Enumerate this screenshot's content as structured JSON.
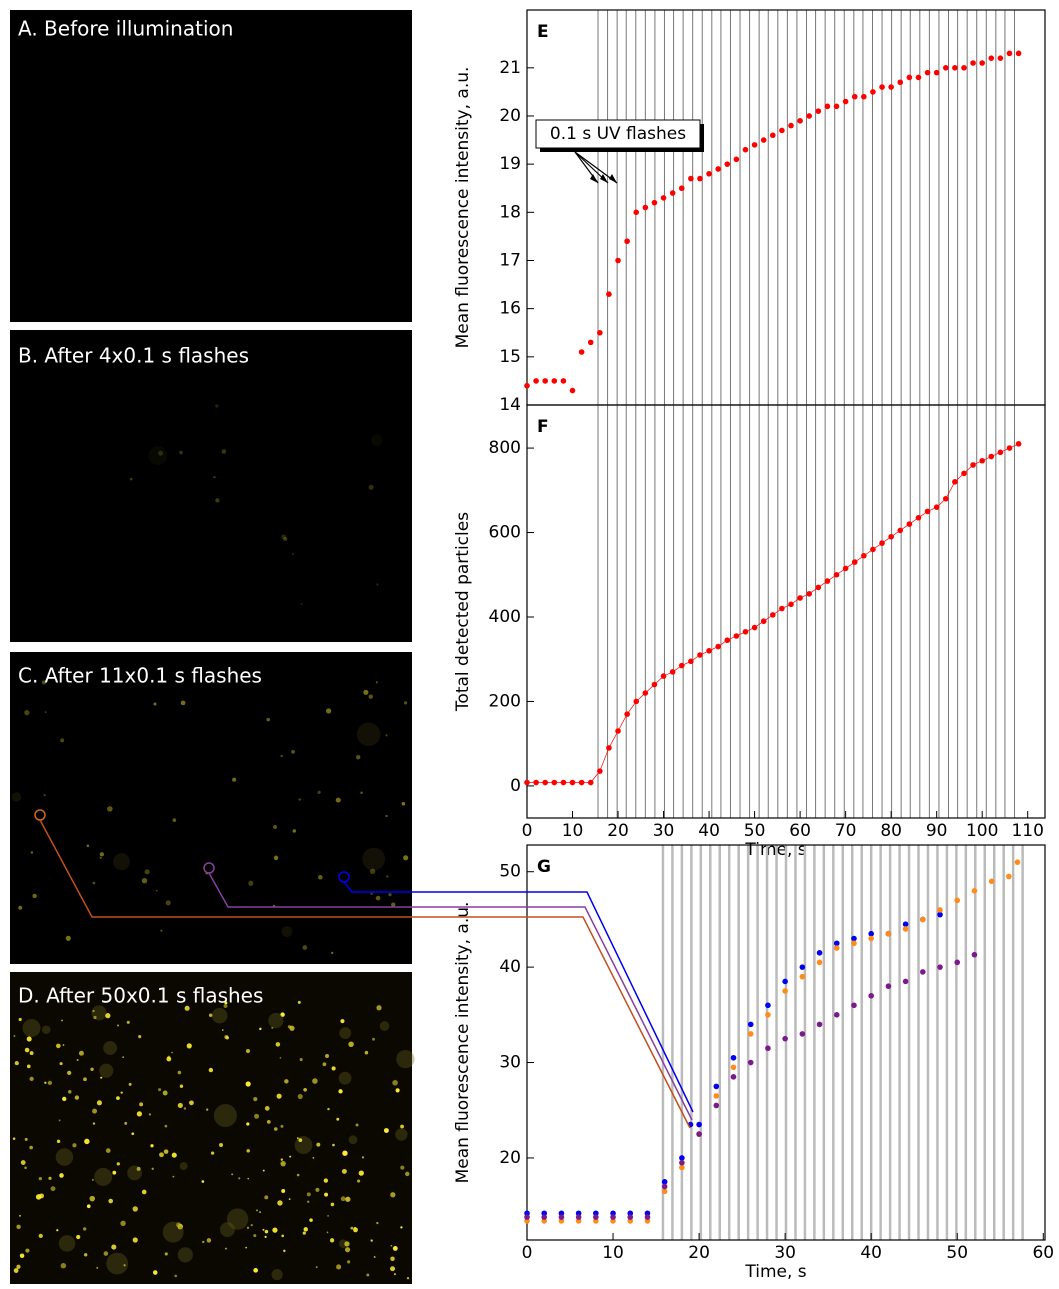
{
  "panels": [
    {
      "title": "A. Before illumination"
    },
    {
      "title": "B. After 4x0.1 s flashes"
    },
    {
      "title": "C. After 11x0.1 s flashes"
    },
    {
      "title": "D. After 50x0.1 s flashes"
    }
  ],
  "chart_data": [
    {
      "type": "scatter",
      "label": "E",
      "ylabel": "Mean fluorescence intensity, a.u.",
      "annotation": "0.1 s UV flashes",
      "xlim": [
        0,
        113.8
      ],
      "ylim": [
        14,
        22.2
      ],
      "yticks": [
        14,
        15,
        16,
        17,
        18,
        19,
        20,
        21
      ],
      "flash_color": "#777777",
      "flashes": [
        15.6,
        17.7,
        19.8,
        21.8,
        23.9,
        26.0,
        28.1,
        30.2,
        32.2,
        34.3,
        36.4,
        38.5,
        40.6,
        42.6,
        44.7,
        46.8,
        48.9,
        51.0,
        53.0,
        55.1,
        57.2,
        59.3,
        61.4,
        63.4,
        65.5,
        67.6,
        69.7,
        71.8,
        73.8,
        75.9,
        78.0,
        80.1,
        82.2,
        84.2,
        86.3,
        88.4,
        90.5,
        92.6,
        94.6,
        96.7,
        98.8,
        100.9,
        103.0,
        105.0,
        107.1
      ],
      "series": [
        {
          "color": "#ff0000",
          "x": [
            0,
            2,
            4,
            6,
            8,
            10,
            12,
            14,
            16,
            18,
            20,
            22,
            24,
            26,
            28,
            30,
            32,
            34,
            36,
            38,
            40,
            42,
            44,
            46,
            48,
            50,
            52,
            54,
            56,
            58,
            60,
            62,
            64,
            66,
            68,
            70,
            72,
            74,
            76,
            78,
            80,
            82,
            84,
            86,
            88,
            90,
            92,
            94,
            96,
            98,
            100,
            102,
            104,
            106,
            108
          ],
          "values": [
            14.4,
            14.5,
            14.5,
            14.5,
            14.5,
            14.3,
            15.1,
            15.3,
            15.5,
            16.3,
            17.0,
            17.4,
            18.0,
            18.1,
            18.2,
            18.3,
            18.4,
            18.5,
            18.7,
            18.7,
            18.8,
            18.9,
            19.0,
            19.1,
            19.3,
            19.4,
            19.5,
            19.6,
            19.7,
            19.8,
            19.9,
            20.0,
            20.1,
            20.2,
            20.2,
            20.3,
            20.4,
            20.4,
            20.5,
            20.6,
            20.6,
            20.7,
            20.8,
            20.8,
            20.9,
            20.9,
            21.0,
            21.0,
            21.0,
            21.1,
            21.1,
            21.2,
            21.2,
            21.3,
            21.3
          ]
        }
      ]
    },
    {
      "type": "scatter",
      "label": "F",
      "ylabel": "Total detected particles",
      "xlabel": "Time, s",
      "connect": true,
      "xlim": [
        0,
        113.8
      ],
      "ylim": [
        -76,
        902
      ],
      "yticks": [
        0,
        200,
        400,
        600,
        800
      ],
      "xticks": [
        0,
        10,
        20,
        30,
        40,
        50,
        60,
        70,
        80,
        90,
        100,
        110
      ],
      "flash_color": "#777777",
      "flashes": [
        15.6,
        17.7,
        19.8,
        21.8,
        23.9,
        26.0,
        28.1,
        30.2,
        32.2,
        34.3,
        36.4,
        38.5,
        40.6,
        42.6,
        44.7,
        46.8,
        48.9,
        51.0,
        53.0,
        55.1,
        57.2,
        59.3,
        61.4,
        63.4,
        65.5,
        67.6,
        69.7,
        71.8,
        73.8,
        75.9,
        78.0,
        80.1,
        82.2,
        84.2,
        86.3,
        88.4,
        90.5,
        92.6,
        94.6,
        96.7,
        98.8,
        100.9,
        103.0,
        105.0,
        107.1
      ],
      "series": [
        {
          "color": "#ff0000",
          "x": [
            0,
            2,
            4,
            6,
            8,
            10,
            12,
            14,
            16,
            18,
            20,
            22,
            24,
            26,
            28,
            30,
            32,
            34,
            36,
            38,
            40,
            42,
            44,
            46,
            48,
            50,
            52,
            54,
            56,
            58,
            60,
            62,
            64,
            66,
            68,
            70,
            72,
            74,
            76,
            78,
            80,
            82,
            84,
            86,
            88,
            90,
            92,
            94,
            96,
            98,
            100,
            102,
            104,
            106,
            108
          ],
          "values": [
            8,
            8,
            8,
            8,
            8,
            8,
            8,
            8,
            35,
            90,
            130,
            170,
            200,
            220,
            240,
            260,
            270,
            285,
            295,
            310,
            320,
            330,
            345,
            355,
            365,
            375,
            390,
            405,
            420,
            430,
            445,
            455,
            470,
            485,
            500,
            515,
            530,
            545,
            560,
            575,
            590,
            605,
            620,
            635,
            650,
            660,
            680,
            720,
            740,
            760,
            770,
            780,
            790,
            800,
            810
          ]
        }
      ]
    },
    {
      "type": "scatter",
      "label": "G",
      "ylabel": "Mean fluorescence intensity, a.u.",
      "xlabel": "Time, s",
      "xlim": [
        0,
        60.2
      ],
      "ylim": [
        11.4,
        52.8
      ],
      "yticks": [
        20,
        30,
        40,
        50
      ],
      "xticks": [
        0,
        10,
        20,
        30,
        40,
        50,
        60
      ],
      "flash_color": "#bbbbbb",
      "flashes": [
        15.8,
        16.9,
        18.0,
        19.1,
        20.2,
        21.3,
        22.4,
        23.5,
        24.6,
        25.7,
        26.8,
        27.9,
        29.0,
        30.1,
        31.2,
        32.3,
        33.4,
        34.5,
        35.6,
        36.7,
        37.8,
        38.9,
        40.0,
        41.1,
        42.2,
        43.3,
        44.4,
        45.5,
        46.6,
        47.7,
        48.8,
        49.9,
        51.0,
        52.1,
        53.2,
        54.3,
        55.4,
        56.5,
        57.6
      ],
      "series": [
        {
          "color": "#0000ee",
          "x": [
            0,
            2,
            4,
            6,
            8,
            10,
            12,
            14,
            16,
            18,
            19,
            20,
            22,
            24,
            26,
            28,
            30,
            32,
            34,
            36,
            38,
            40,
            42,
            44,
            46,
            48
          ],
          "values": [
            14.2,
            14.2,
            14.2,
            14.2,
            14.2,
            14.2,
            14.2,
            14.2,
            17.5,
            20,
            23.5,
            23.5,
            27.5,
            30.5,
            34,
            36,
            38.5,
            40,
            41.5,
            42.5,
            43,
            43.5,
            43.5,
            44.5,
            45,
            45.5
          ]
        },
        {
          "color": "#ff8c1a",
          "x": [
            0,
            2,
            4,
            6,
            8,
            10,
            12,
            14,
            16,
            18,
            20,
            22,
            24,
            26,
            28,
            30,
            32,
            34,
            36,
            38,
            40,
            42,
            44,
            46,
            48,
            50,
            52,
            54,
            56,
            57
          ],
          "values": [
            13.4,
            13.4,
            13.4,
            13.4,
            13.4,
            13.4,
            13.4,
            13.4,
            16.5,
            19,
            22.5,
            26.5,
            29.5,
            33,
            35,
            37.5,
            39,
            40.5,
            42,
            42.5,
            43,
            43.5,
            44,
            45,
            46,
            47,
            48,
            49,
            49.5,
            51
          ]
        },
        {
          "color": "#7b1a8c",
          "x": [
            0,
            2,
            4,
            6,
            8,
            10,
            12,
            14,
            16,
            18,
            20,
            22,
            24,
            26,
            28,
            30,
            32,
            34,
            36,
            38,
            40,
            42,
            44,
            46,
            48,
            50,
            52
          ],
          "values": [
            13.8,
            13.8,
            13.8,
            13.8,
            13.8,
            13.8,
            13.8,
            13.8,
            17,
            19.5,
            22.5,
            25.5,
            28.5,
            30,
            31.5,
            32.5,
            33,
            34,
            35,
            36,
            37,
            38,
            38.5,
            39.5,
            40,
            40.5,
            41.3
          ]
        }
      ]
    }
  ]
}
